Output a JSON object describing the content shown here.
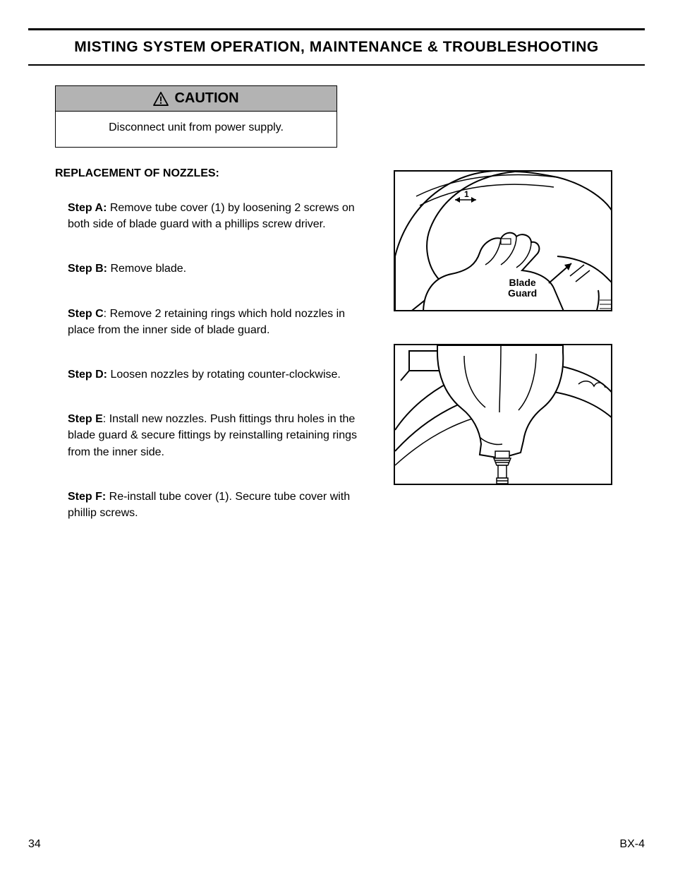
{
  "section_title": "MISTING SYSTEM OPERATION, MAINTENANCE & TROUBLESHOOTING",
  "caution": {
    "header": "CAUTION",
    "body": "Disconnect unit from power supply."
  },
  "subhead": "REPLACEMENT OF NOZZLES:",
  "steps": {
    "a": {
      "label": "Step A:",
      "text": " Remove tube cover (1) by loosening 2 screws on both side of blade guard with a phillips screw driver."
    },
    "b": {
      "label": "Step B:",
      "text": " Remove blade."
    },
    "c": {
      "label": "Step C",
      "text": ": Remove 2 retaining rings which hold nozzles in place from the inner side of blade guard."
    },
    "d": {
      "label": "Step D:",
      "text": " Loosen nozzles by rotating counter-clockwise."
    },
    "e": {
      "label": "Step E",
      "text": ": Install new nozzles. Push fittings thru holes in the blade guard & secure fittings by reinstalling retaining rings from the inner side."
    },
    "f": {
      "label": "Step F:",
      "text": " Re-install tube cover (1). Secure tube cover with phillip screws."
    }
  },
  "figure1": {
    "label": "Blade\nGuard",
    "callout": "1"
  },
  "footer": {
    "page_num": "34",
    "doc_code": "BX-4"
  },
  "style": {
    "colors": {
      "text": "#000000",
      "bg": "#ffffff",
      "caution_header_bg": "#b3b3b3",
      "border": "#000000"
    },
    "fonts": {
      "title_pt": 21,
      "body_pt": 16,
      "subhead_pt": 16,
      "fig_label_pt": 14
    }
  }
}
